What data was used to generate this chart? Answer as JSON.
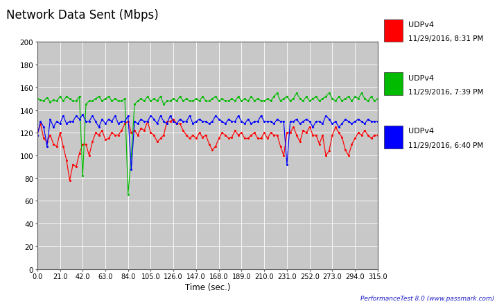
{
  "title": "Network Data Sent (Mbps)",
  "xlabel": "Time (sec.)",
  "xlim": [
    0,
    315
  ],
  "ylim": [
    0,
    200
  ],
  "yticks": [
    0,
    20,
    40,
    60,
    80,
    100,
    120,
    140,
    160,
    180,
    200
  ],
  "xticks": [
    0.0,
    21.0,
    42.0,
    63.0,
    84.0,
    105.0,
    126.0,
    147.0,
    168.0,
    189.0,
    210.0,
    231.0,
    252.0,
    273.0,
    294.0,
    315.0
  ],
  "bg_color": "#c8c8c8",
  "fig_bg_color": "#ffffff",
  "legend": [
    {
      "label": "UDPv4",
      "sublabel": "11/29/2016, 8:31 PM",
      "color": "#ff0000"
    },
    {
      "label": "UDPv4",
      "sublabel": "11/29/2016, 7:39 PM",
      "color": "#00bb00"
    },
    {
      "label": "UDPv4",
      "sublabel": "11/29/2016, 6:40 PM",
      "color": "#0000ff"
    }
  ],
  "footer": "PerformanceTest 8.0 (www.passmark.com)",
  "red_x": [
    0,
    3,
    6,
    9,
    12,
    15,
    18,
    21,
    24,
    27,
    30,
    33,
    36,
    39,
    42,
    45,
    48,
    51,
    54,
    57,
    60,
    63,
    66,
    69,
    72,
    75,
    78,
    81,
    84,
    87,
    90,
    93,
    96,
    99,
    102,
    105,
    108,
    111,
    114,
    117,
    120,
    123,
    126,
    129,
    132,
    135,
    138,
    141,
    144,
    147,
    150,
    153,
    156,
    159,
    162,
    165,
    168,
    171,
    174,
    177,
    180,
    183,
    186,
    189,
    192,
    195,
    198,
    201,
    204,
    207,
    210,
    213,
    216,
    219,
    222,
    225,
    228,
    231,
    234,
    237,
    240,
    243,
    246,
    249,
    252,
    255,
    258,
    261,
    264,
    267,
    270,
    273,
    276,
    279,
    282,
    285,
    288,
    291,
    294,
    297,
    300,
    303,
    306,
    309,
    312,
    315
  ],
  "red_y": [
    118,
    128,
    115,
    112,
    118,
    110,
    108,
    120,
    108,
    96,
    78,
    92,
    90,
    102,
    110,
    110,
    100,
    112,
    120,
    118,
    122,
    114,
    115,
    120,
    118,
    118,
    122,
    128,
    130,
    120,
    122,
    118,
    124,
    122,
    130,
    120,
    118,
    112,
    115,
    118,
    130,
    130,
    132,
    128,
    128,
    122,
    118,
    115,
    118,
    115,
    120,
    116,
    118,
    110,
    105,
    108,
    115,
    120,
    118,
    115,
    116,
    122,
    118,
    120,
    115,
    115,
    118,
    120,
    115,
    115,
    120,
    115,
    120,
    118,
    118,
    108,
    100,
    120,
    120,
    125,
    118,
    112,
    122,
    120,
    125,
    118,
    118,
    110,
    118,
    100,
    104,
    118,
    125,
    120,
    116,
    105,
    100,
    110,
    115,
    120,
    118,
    122,
    118,
    115,
    118,
    118
  ],
  "green_x": [
    0,
    3,
    6,
    9,
    12,
    15,
    18,
    21,
    24,
    27,
    30,
    33,
    36,
    39,
    42,
    45,
    48,
    51,
    54,
    57,
    60,
    63,
    66,
    69,
    72,
    75,
    78,
    81,
    84,
    87,
    90,
    93,
    96,
    99,
    102,
    105,
    108,
    111,
    114,
    117,
    120,
    123,
    126,
    129,
    132,
    135,
    138,
    141,
    144,
    147,
    150,
    153,
    156,
    159,
    162,
    165,
    168,
    171,
    174,
    177,
    180,
    183,
    186,
    189,
    192,
    195,
    198,
    201,
    204,
    207,
    210,
    213,
    216,
    219,
    222,
    225,
    228,
    231,
    234,
    237,
    240,
    243,
    246,
    249,
    252,
    255,
    258,
    261,
    264,
    267,
    270,
    273,
    276,
    279,
    282,
    285,
    288,
    291,
    294,
    297,
    300,
    303,
    306,
    309,
    312,
    315
  ],
  "green_y": [
    150,
    149,
    148,
    151,
    147,
    149,
    148,
    152,
    148,
    152,
    150,
    148,
    148,
    152,
    82,
    145,
    148,
    148,
    150,
    152,
    148,
    150,
    152,
    148,
    150,
    148,
    148,
    150,
    66,
    100,
    145,
    148,
    150,
    148,
    152,
    148,
    150,
    148,
    152,
    145,
    148,
    148,
    150,
    148,
    152,
    148,
    150,
    148,
    148,
    150,
    148,
    152,
    148,
    148,
    150,
    152,
    148,
    150,
    148,
    148,
    150,
    148,
    152,
    148,
    150,
    148,
    152,
    148,
    150,
    148,
    148,
    150,
    148,
    152,
    155,
    148,
    150,
    152,
    148,
    150,
    155,
    150,
    148,
    152,
    148,
    150,
    152,
    148,
    150,
    152,
    155,
    150,
    148,
    152,
    148,
    150,
    152,
    148,
    152,
    150,
    155,
    150,
    148,
    152,
    148,
    150
  ],
  "blue_x": [
    0,
    3,
    6,
    9,
    12,
    15,
    18,
    21,
    24,
    27,
    30,
    33,
    36,
    39,
    42,
    45,
    48,
    51,
    54,
    57,
    60,
    63,
    66,
    69,
    72,
    75,
    78,
    81,
    84,
    87,
    90,
    93,
    96,
    99,
    102,
    105,
    108,
    111,
    114,
    117,
    120,
    123,
    126,
    129,
    132,
    135,
    138,
    141,
    144,
    147,
    150,
    153,
    156,
    159,
    162,
    165,
    168,
    171,
    174,
    177,
    180,
    183,
    186,
    189,
    192,
    195,
    198,
    201,
    204,
    207,
    210,
    213,
    216,
    219,
    222,
    225,
    228,
    231,
    234,
    237,
    240,
    243,
    246,
    249,
    252,
    255,
    258,
    261,
    264,
    267,
    270,
    273,
    276,
    279,
    282,
    285,
    288,
    291,
    294,
    297,
    300,
    303,
    306,
    309,
    312,
    315
  ],
  "blue_y": [
    118,
    130,
    125,
    108,
    132,
    125,
    130,
    128,
    135,
    128,
    130,
    130,
    135,
    132,
    136,
    130,
    130,
    135,
    130,
    125,
    132,
    128,
    132,
    130,
    135,
    128,
    130,
    130,
    135,
    88,
    130,
    128,
    132,
    130,
    130,
    135,
    132,
    128,
    135,
    130,
    128,
    135,
    130,
    128,
    132,
    130,
    130,
    135,
    128,
    130,
    132,
    130,
    130,
    128,
    130,
    135,
    132,
    130,
    128,
    132,
    130,
    130,
    135,
    130,
    128,
    132,
    128,
    130,
    130,
    135,
    130,
    130,
    130,
    128,
    132,
    130,
    130,
    92,
    130,
    130,
    132,
    128,
    130,
    132,
    130,
    125,
    130,
    130,
    128,
    135,
    132,
    128,
    130,
    125,
    128,
    132,
    130,
    128,
    130,
    132,
    130,
    128,
    132,
    130,
    130,
    130
  ]
}
